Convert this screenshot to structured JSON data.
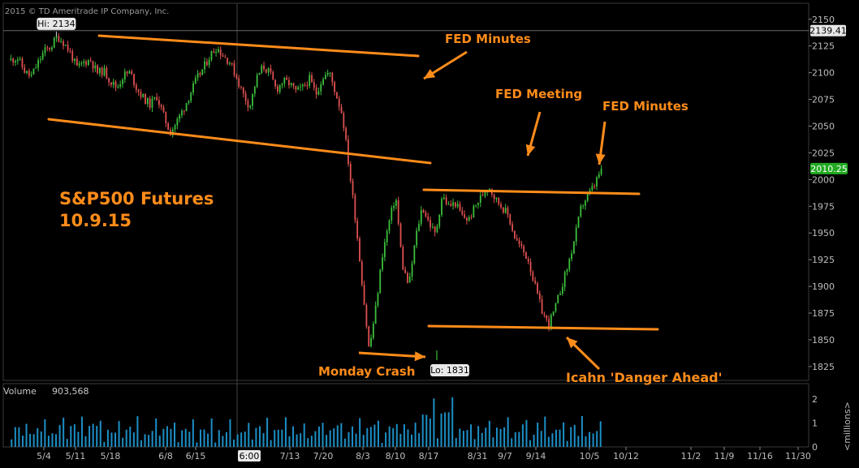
{
  "copyright": "2015 © TD Ameritrade IP Company, Inc.",
  "annotations": {
    "title_line1": "S&P500 Futures",
    "title_line2": "10.9.15",
    "fed_minutes_1": "FED Minutes",
    "fed_meeting": "FED Meeting",
    "fed_minutes_2": "FED Minutes",
    "monday_crash": "Monday Crash",
    "icahn": "Icahn 'Danger Ahead'"
  },
  "markers": {
    "hi": "Hi: 2134",
    "lo": "Lo: 1831"
  },
  "price_tags": {
    "hi_line": "2139.41",
    "last": "2010.25"
  },
  "volume": {
    "label": "Volume",
    "value": "903,568",
    "unit": "<millions>",
    "ticks": [
      "2",
      "1",
      "0"
    ]
  },
  "cursor_time": "6:00",
  "colors": {
    "up": "#3cbf3c",
    "down": "#e05050",
    "annotation": "#ff8c1a",
    "volume": "#1d8fc6",
    "last_price": "#22aa22"
  },
  "chart_data": {
    "type": "line",
    "title": "S&P500 Futures 10.9.15",
    "yticks": [
      1825,
      1850,
      1875,
      1900,
      1925,
      1950,
      1975,
      2000,
      2025,
      2050,
      2075,
      2100,
      2125,
      2150
    ],
    "ylim": [
      1812,
      2165
    ],
    "xtick_labels": [
      "5/4",
      "5/11",
      "5/18",
      "6/8",
      "6/15",
      "7/13",
      "7/20",
      "8/3",
      "8/10",
      "8/17",
      "8/31",
      "9/7",
      "9/14",
      "10/5",
      "10/12",
      "11/2",
      "11/9",
      "11/16",
      "11/30"
    ],
    "series": [
      {
        "values": [
          2112,
          2114,
          2102,
          2096,
          2108,
          2120,
          2124,
          2134,
          2128,
          2118,
          2104,
          2110,
          2112,
          2100,
          2102,
          2092,
          2086,
          2098,
          2100,
          2085,
          2076,
          2070,
          2078,
          2060,
          2044,
          2054,
          2066,
          2080,
          2094,
          2104,
          2116,
          2124,
          2116,
          2110,
          2096,
          2080,
          2068,
          2094,
          2106,
          2100,
          2084,
          2092,
          2090,
          2082,
          2086,
          2094,
          2080,
          2096,
          2100,
          2080,
          2060,
          2010,
          1960,
          1900,
          1840,
          1880,
          1930,
          1960,
          1985,
          1920,
          1900,
          1945,
          1975,
          1960,
          1948,
          1985,
          1975,
          1978,
          1966,
          1962,
          1975,
          1985,
          1995,
          1982,
          1975,
          1966,
          1945,
          1935,
          1925,
          1900,
          1878,
          1864,
          1878,
          1900,
          1920,
          1945,
          1975,
          1985,
          1995,
          2010
        ]
      }
    ],
    "markers": {
      "hi": 2134,
      "lo": 1831,
      "last": 2010.25,
      "hi_line": 2139.41
    },
    "volume_unit": "millions",
    "volume_ylim": [
      0,
      2.5
    ]
  }
}
